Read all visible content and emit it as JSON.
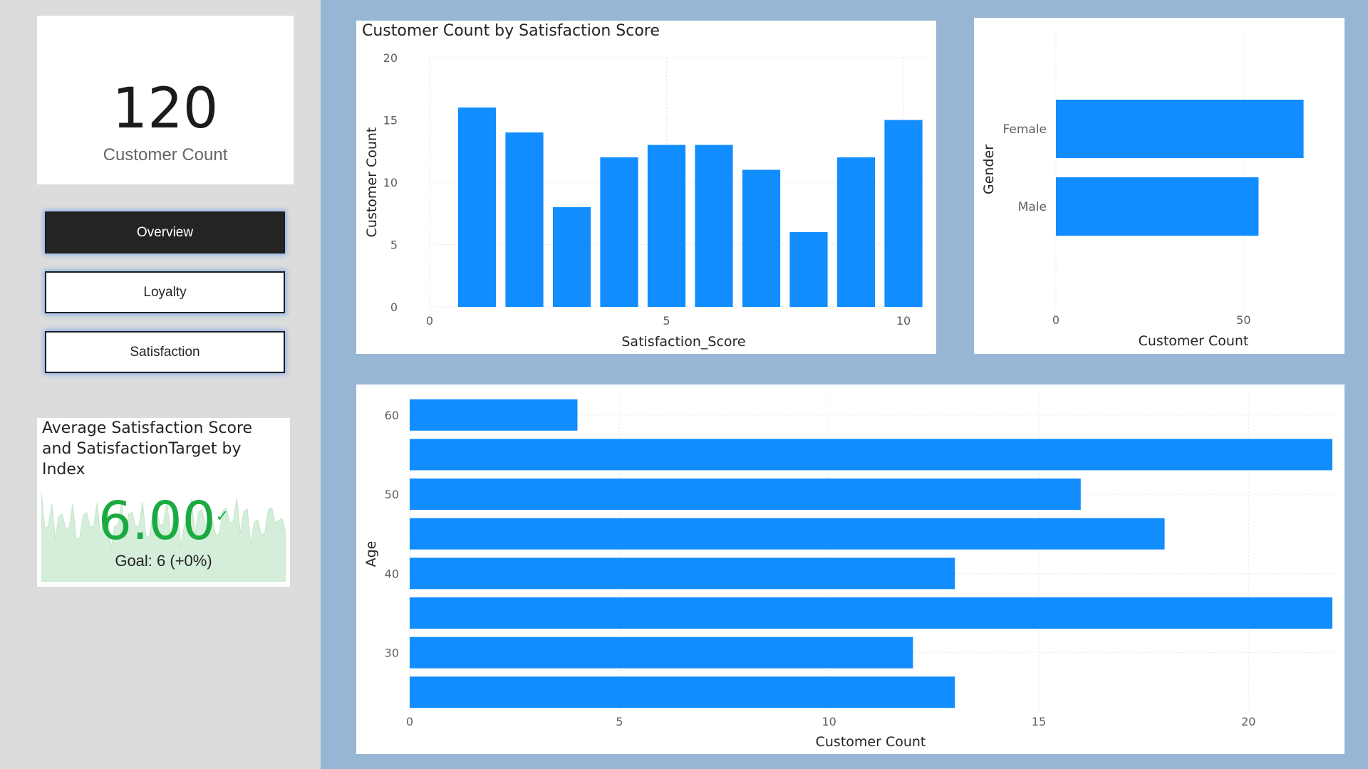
{
  "card": {
    "value": "120",
    "label": "Customer Count"
  },
  "nav": [
    {
      "label": "Overview",
      "active": true
    },
    {
      "label": "Loyalty",
      "active": false
    },
    {
      "label": "Satisfaction",
      "active": false
    }
  ],
  "kpi": {
    "title": "Average Satisfaction Score and SatisfactionTarget by Index",
    "value": "6.00",
    "check": "✓",
    "goal": "Goal: 6 (+0%)"
  },
  "colors": {
    "bar": "#118dff",
    "kpi_green": "#1aab40",
    "canvas": "#97b6d3",
    "nav_active": "#252423"
  },
  "chart_data": [
    {
      "type": "bar",
      "title": "Customer Count by Satisfaction Score",
      "xlabel": "Satisfaction_Score",
      "ylabel": "Customer Count",
      "x": [
        1,
        2,
        3,
        4,
        5,
        6,
        7,
        8,
        9,
        10
      ],
      "values": [
        16,
        14,
        8,
        12,
        13,
        13,
        11,
        6,
        12,
        15
      ],
      "xlim": [
        0,
        10
      ],
      "ylim": [
        0,
        20
      ],
      "xticks": [
        "0",
        "5",
        "10"
      ],
      "yticks": [
        "0",
        "5",
        "10",
        "15",
        "20"
      ],
      "grid": true
    },
    {
      "type": "bar",
      "orientation": "horizontal",
      "title": "",
      "xlabel": "Customer Count",
      "ylabel": "Gender",
      "categories": [
        "Female",
        "Male"
      ],
      "values": [
        66,
        54
      ],
      "xlim": [
        0,
        75
      ],
      "xticks": [
        "0",
        "50"
      ],
      "grid": true
    },
    {
      "type": "bar",
      "orientation": "horizontal",
      "title": "",
      "xlabel": "Customer Count",
      "ylabel": "Age",
      "y": [
        60,
        55,
        50,
        45,
        40,
        35,
        30,
        25
      ],
      "values": [
        4,
        22,
        16,
        18,
        13,
        22,
        12,
        13
      ],
      "ylim": [
        22.5,
        62.5
      ],
      "xlim": [
        0,
        22
      ],
      "xticks": [
        "0",
        "5",
        "10",
        "15",
        "20"
      ],
      "yticks": [
        "60",
        "50",
        "40",
        "30"
      ],
      "grid": true
    }
  ]
}
